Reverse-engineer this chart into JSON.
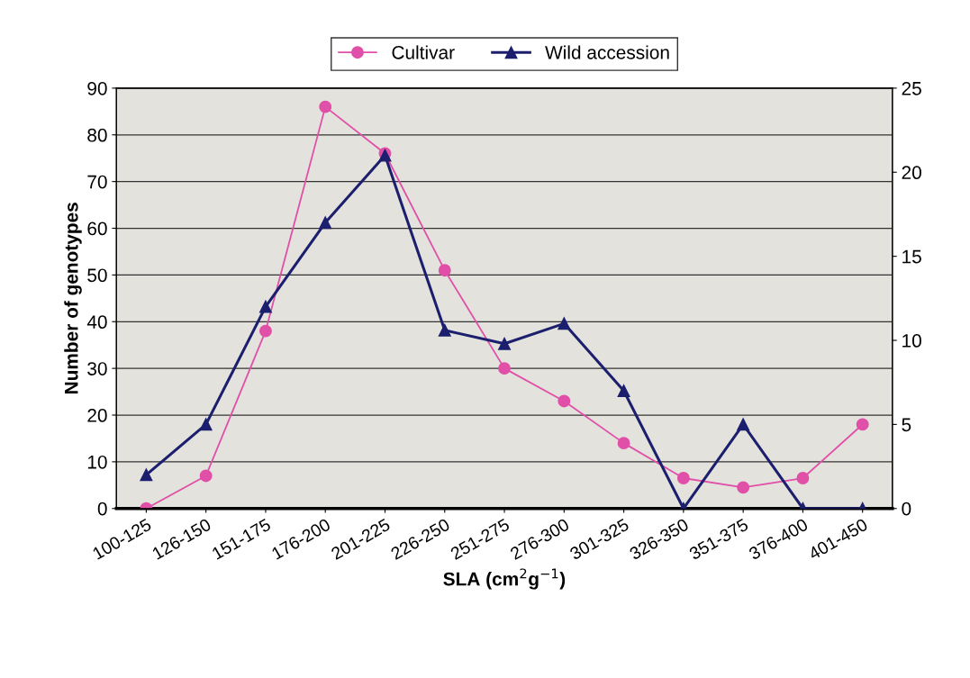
{
  "chart_data": {
    "type": "line",
    "xlabel": "SLA (cm$^{2}$g$^{−1}$)",
    "ylabel": "Number of genotypes",
    "categories": [
      "100-125",
      "126-150",
      "151-175",
      "176-200",
      "201-225",
      "226-250",
      "251-275",
      "276-300",
      "301-325",
      "326-350",
      "351-375",
      "376-400",
      "401-450"
    ],
    "series": [
      {
        "name": "Cultivar",
        "color": "#e04fa8",
        "marker": "circle",
        "values": [
          0,
          7,
          38,
          86,
          76,
          51,
          30,
          23,
          14,
          6.5,
          4.5,
          6.5,
          18
        ]
      },
      {
        "name": "Wild accession",
        "color": "#1b1f6e",
        "marker": "triangle",
        "axis": "y2",
        "values": [
          2,
          5,
          12,
          17,
          21,
          10.6,
          9.8,
          11,
          7,
          0,
          5,
          0,
          0
        ]
      }
    ],
    "ylim": [
      0,
      90
    ],
    "yticks": [
      0,
      10,
      20,
      30,
      40,
      50,
      60,
      70,
      80,
      90
    ],
    "y2lim": [
      0,
      25
    ],
    "y2ticks": [
      0,
      5,
      10,
      15,
      20,
      25
    ],
    "grid": "y",
    "legend": "top"
  }
}
